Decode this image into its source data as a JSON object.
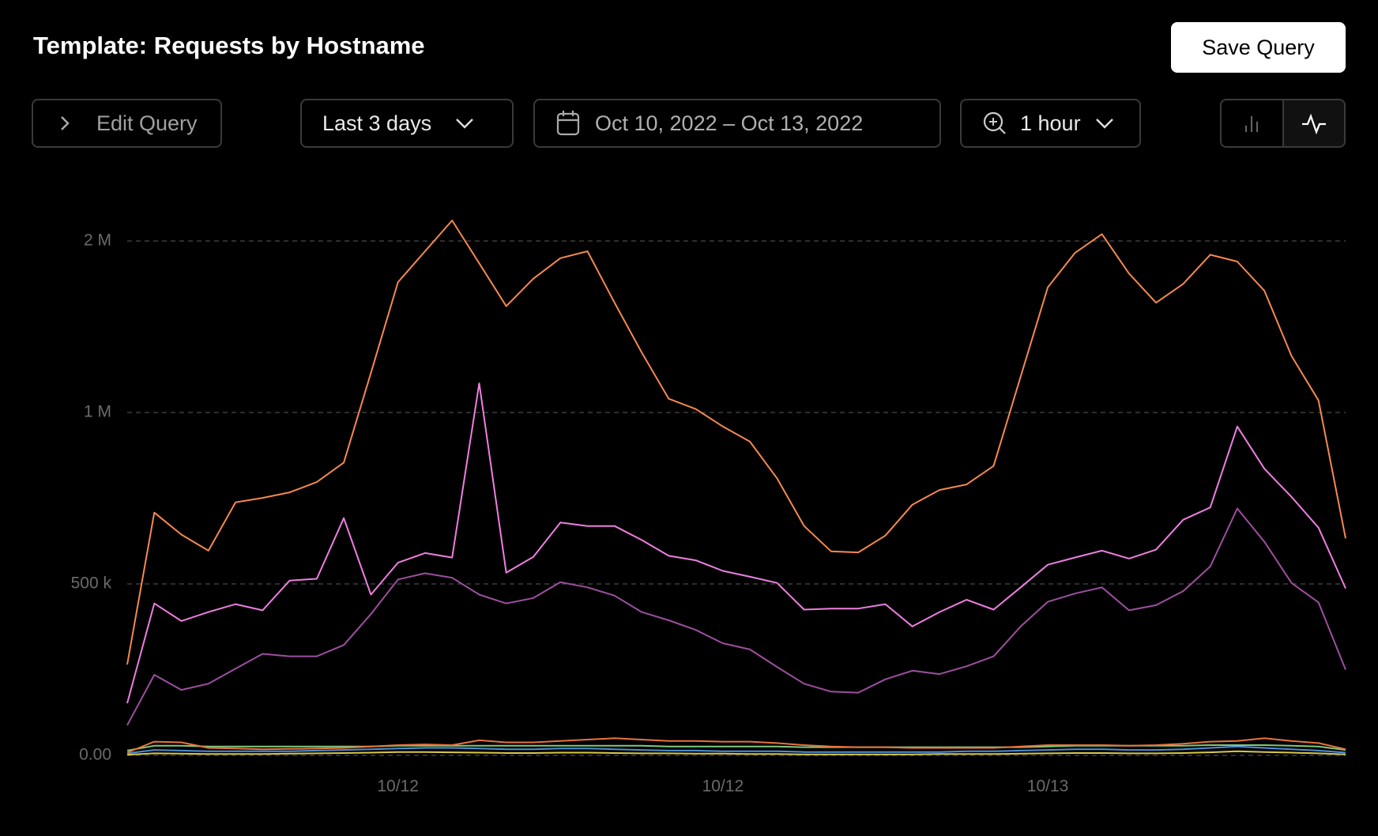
{
  "header": {
    "title": "Template: Requests by Hostname",
    "save_button": "Save Query"
  },
  "toolbar": {
    "edit_query": "Edit Query",
    "range": "Last 3 days",
    "dates": "Oct 10, 2022 – Oct 13, 2022",
    "interval": "1 hour"
  },
  "chart_data": {
    "type": "line",
    "y_scale": "tick-spaced",
    "grid": true,
    "categories": [
      null,
      null,
      null,
      null,
      null,
      null,
      null,
      null,
      null,
      null,
      "10/12",
      null,
      null,
      null,
      null,
      null,
      null,
      null,
      null,
      null,
      null,
      null,
      "10/12",
      null,
      null,
      null,
      null,
      null,
      null,
      null,
      null,
      null,
      null,
      null,
      "10/13",
      null,
      null,
      null,
      null,
      null,
      null,
      null,
      null,
      null,
      null,
      null
    ],
    "ylim": [
      0,
      2200000
    ],
    "yticks": [
      {
        "value": 0,
        "label": "0.00"
      },
      {
        "value": 500000,
        "label": "500 k"
      },
      {
        "value": 1000000,
        "label": "1 M"
      },
      {
        "value": 2000000,
        "label": "2 M"
      }
    ],
    "series": [
      {
        "color": "#f5894f",
        "values": [
          265000,
          708000,
          644000,
          597000,
          738000,
          751000,
          767000,
          797000,
          854000,
          1230000,
          1760000,
          1940000,
          2120000,
          1870000,
          1620000,
          1780000,
          1900000,
          1940000,
          1640000,
          1350000,
          1080000,
          1020000,
          959000,
          915000,
          808000,
          669000,
          595000,
          592000,
          641000,
          731000,
          774000,
          790000,
          844000,
          1210000,
          1730000,
          1930000,
          2040000,
          1810000,
          1640000,
          1750000,
          1920000,
          1880000,
          1710000,
          1330000,
          1070000,
          633000
        ]
      },
      {
        "color": "#ee7fe0",
        "values": [
          152000,
          443000,
          392000,
          418000,
          441000,
          423000,
          510000,
          515000,
          692000,
          469000,
          562000,
          590000,
          577000,
          1170000,
          533000,
          579000,
          679000,
          669000,
          669000,
          628000,
          582000,
          569000,
          538000,
          521000,
          503000,
          425000,
          428000,
          428000,
          441000,
          376000,
          418000,
          454000,
          425000,
          490000,
          556000,
          577000,
          597000,
          574000,
          600000,
          687000,
          723000,
          959000,
          836000,
          754000,
          664000,
          487000
        ]
      },
      {
        "color": "#9d4f9f",
        "values": [
          88000,
          235000,
          191000,
          209000,
          253000,
          296000,
          289000,
          289000,
          322000,
          412000,
          513000,
          531000,
          518000,
          469000,
          443000,
          459000,
          505000,
          490000,
          466000,
          418000,
          394000,
          366000,
          327000,
          309000,
          258000,
          209000,
          186000,
          183000,
          222000,
          247000,
          237000,
          260000,
          289000,
          376000,
          448000,
          472000,
          490000,
          423000,
          438000,
          479000,
          551000,
          720000,
          623000,
          503000,
          446000,
          250000
        ]
      },
      {
        "color": "#e8743b",
        "values": [
          8000,
          40000,
          38000,
          22000,
          20000,
          18000,
          19000,
          20000,
          22000,
          26000,
          30000,
          32000,
          30000,
          44000,
          38000,
          38000,
          42000,
          46000,
          50000,
          46000,
          42000,
          42000,
          40000,
          40000,
          36000,
          30000,
          26000,
          24000,
          24000,
          22000,
          22000,
          22000,
          22000,
          26000,
          30000,
          30000,
          30000,
          28000,
          30000,
          34000,
          40000,
          42000,
          50000,
          42000,
          36000,
          18000
        ]
      },
      {
        "color": "#7fc97f",
        "values": [
          14000,
          28000,
          28000,
          26000,
          26000,
          26000,
          26000,
          26000,
          26000,
          26000,
          28000,
          28000,
          28000,
          28000,
          28000,
          28000,
          28000,
          28000,
          28000,
          28000,
          26000,
          26000,
          26000,
          26000,
          26000,
          24000,
          24000,
          24000,
          24000,
          24000,
          24000,
          24000,
          24000,
          24000,
          26000,
          28000,
          28000,
          28000,
          28000,
          28000,
          30000,
          30000,
          30000,
          28000,
          26000,
          16000
        ]
      },
      {
        "color": "#4e8fd8",
        "values": [
          6000,
          16000,
          14000,
          12000,
          12000,
          12000,
          12000,
          14000,
          16000,
          18000,
          20000,
          22000,
          22000,
          20000,
          18000,
          18000,
          20000,
          20000,
          18000,
          16000,
          14000,
          14000,
          12000,
          12000,
          12000,
          10000,
          10000,
          10000,
          10000,
          10000,
          10000,
          12000,
          12000,
          14000,
          16000,
          18000,
          18000,
          16000,
          16000,
          18000,
          22000,
          26000,
          22000,
          18000,
          14000,
          8000
        ]
      },
      {
        "color": "#d9c84a",
        "values": [
          2000,
          6000,
          5000,
          4000,
          4000,
          4000,
          5000,
          6000,
          7000,
          8000,
          10000,
          10000,
          9000,
          8000,
          7000,
          7000,
          8000,
          8000,
          7000,
          6000,
          6000,
          5000,
          5000,
          4000,
          4000,
          3000,
          3000,
          3000,
          3000,
          3000,
          4000,
          4000,
          4000,
          5000,
          6000,
          7000,
          7000,
          6000,
          6000,
          7000,
          9000,
          12000,
          10000,
          8000,
          6000,
          3000
        ]
      }
    ]
  }
}
